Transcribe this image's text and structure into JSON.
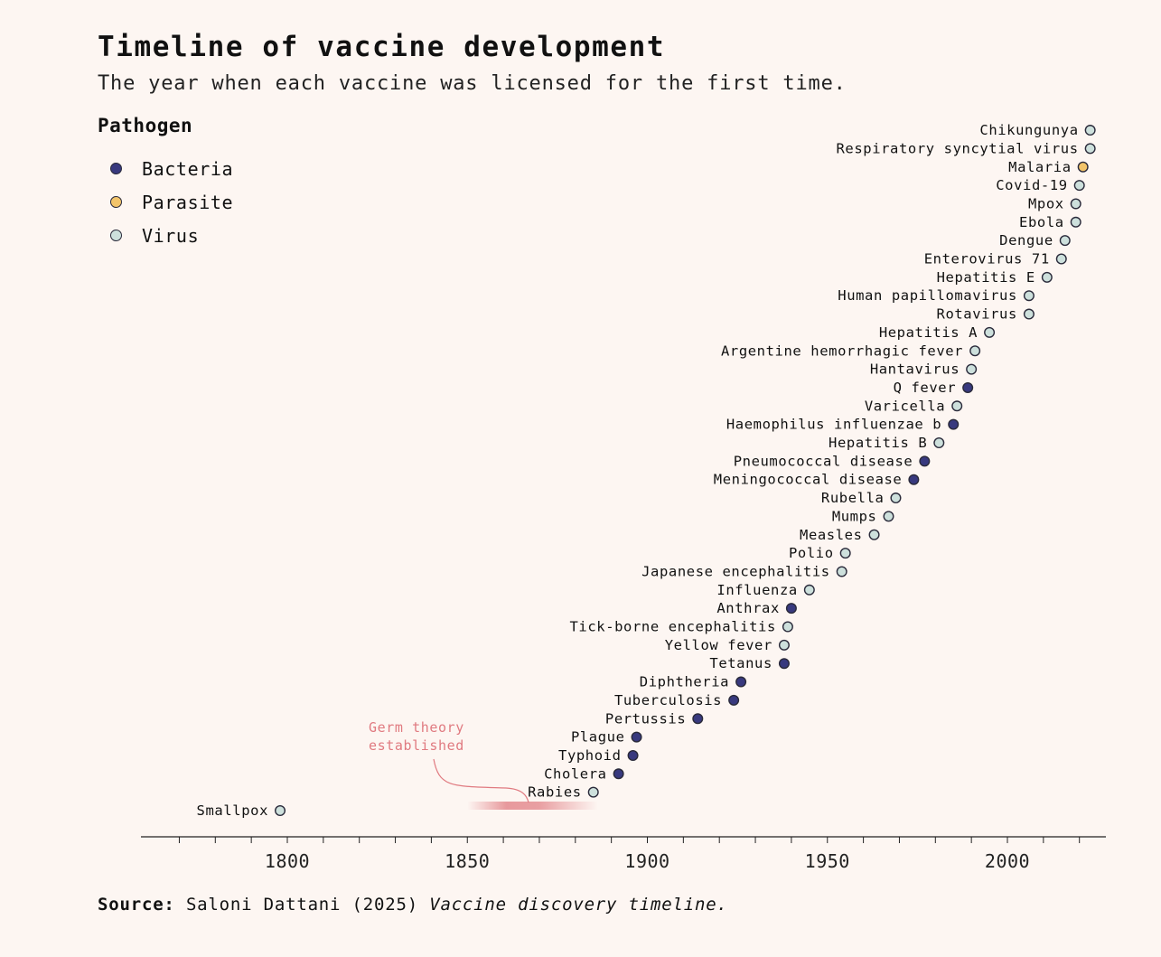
{
  "title": "Timeline of vaccine development",
  "subtitle": "The year when each vaccine was licensed for the first time.",
  "legend": {
    "title": "Pathogen",
    "items": [
      {
        "label": "Bacteria",
        "key": "bacteria"
      },
      {
        "label": "Parasite",
        "key": "parasite"
      },
      {
        "label": "Virus",
        "key": "virus"
      }
    ]
  },
  "colors": {
    "bacteria": "#38397e",
    "parasite": "#f2c46a",
    "virus": "#cde0dc",
    "stroke": "#2a2a3a",
    "annotation": "#e07a80",
    "background": "#fdf6f2"
  },
  "source": {
    "label": "Source:",
    "text": "Saloni Dattani (2025)",
    "title": "Vaccine discovery timeline."
  },
  "chart_data": {
    "type": "scatter",
    "xlabel": "",
    "ylabel": "",
    "xlim": [
      1760,
      2025
    ],
    "x_ticks": [
      1800,
      1850,
      1900,
      1950,
      2000
    ],
    "annotation": {
      "text": [
        "Germ theory",
        "established"
      ],
      "range": [
        1855,
        1885
      ]
    },
    "points": [
      {
        "name": "Smallpox",
        "year": 1798,
        "pathogen": "virus"
      },
      {
        "name": "Rabies",
        "year": 1885,
        "pathogen": "virus"
      },
      {
        "name": "Cholera",
        "year": 1892,
        "pathogen": "bacteria"
      },
      {
        "name": "Typhoid",
        "year": 1896,
        "pathogen": "bacteria"
      },
      {
        "name": "Plague",
        "year": 1897,
        "pathogen": "bacteria"
      },
      {
        "name": "Pertussis",
        "year": 1914,
        "pathogen": "bacteria"
      },
      {
        "name": "Tuberculosis",
        "year": 1924,
        "pathogen": "bacteria"
      },
      {
        "name": "Diphtheria",
        "year": 1926,
        "pathogen": "bacteria"
      },
      {
        "name": "Tetanus",
        "year": 1938,
        "pathogen": "bacteria"
      },
      {
        "name": "Yellow fever",
        "year": 1938,
        "pathogen": "virus"
      },
      {
        "name": "Tick-borne encephalitis",
        "year": 1939,
        "pathogen": "virus"
      },
      {
        "name": "Anthrax",
        "year": 1940,
        "pathogen": "bacteria"
      },
      {
        "name": "Influenza",
        "year": 1945,
        "pathogen": "virus"
      },
      {
        "name": "Japanese encephalitis",
        "year": 1954,
        "pathogen": "virus"
      },
      {
        "name": "Polio",
        "year": 1955,
        "pathogen": "virus"
      },
      {
        "name": "Measles",
        "year": 1963,
        "pathogen": "virus"
      },
      {
        "name": "Mumps",
        "year": 1967,
        "pathogen": "virus"
      },
      {
        "name": "Rubella",
        "year": 1969,
        "pathogen": "virus"
      },
      {
        "name": "Meningococcal disease",
        "year": 1974,
        "pathogen": "bacteria"
      },
      {
        "name": "Pneumococcal disease",
        "year": 1977,
        "pathogen": "bacteria"
      },
      {
        "name": "Hepatitis B",
        "year": 1981,
        "pathogen": "virus"
      },
      {
        "name": "Haemophilus influenzae b",
        "year": 1985,
        "pathogen": "bacteria"
      },
      {
        "name": "Varicella",
        "year": 1986,
        "pathogen": "virus"
      },
      {
        "name": "Q fever",
        "year": 1989,
        "pathogen": "bacteria"
      },
      {
        "name": "Hantavirus",
        "year": 1990,
        "pathogen": "virus"
      },
      {
        "name": "Argentine hemorrhagic fever",
        "year": 1991,
        "pathogen": "virus"
      },
      {
        "name": "Hepatitis A",
        "year": 1995,
        "pathogen": "virus"
      },
      {
        "name": "Rotavirus",
        "year": 2006,
        "pathogen": "virus"
      },
      {
        "name": "Human papillomavirus",
        "year": 2006,
        "pathogen": "virus"
      },
      {
        "name": "Hepatitis E",
        "year": 2011,
        "pathogen": "virus"
      },
      {
        "name": "Enterovirus 71",
        "year": 2015,
        "pathogen": "virus"
      },
      {
        "name": "Dengue",
        "year": 2016,
        "pathogen": "virus"
      },
      {
        "name": "Ebola",
        "year": 2019,
        "pathogen": "virus"
      },
      {
        "name": "Mpox",
        "year": 2019,
        "pathogen": "virus"
      },
      {
        "name": "Covid-19",
        "year": 2020,
        "pathogen": "virus"
      },
      {
        "name": "Malaria",
        "year": 2021,
        "pathogen": "parasite"
      },
      {
        "name": "Respiratory syncytial virus",
        "year": 2023,
        "pathogen": "virus"
      },
      {
        "name": "Chikungunya",
        "year": 2023,
        "pathogen": "virus"
      }
    ]
  }
}
